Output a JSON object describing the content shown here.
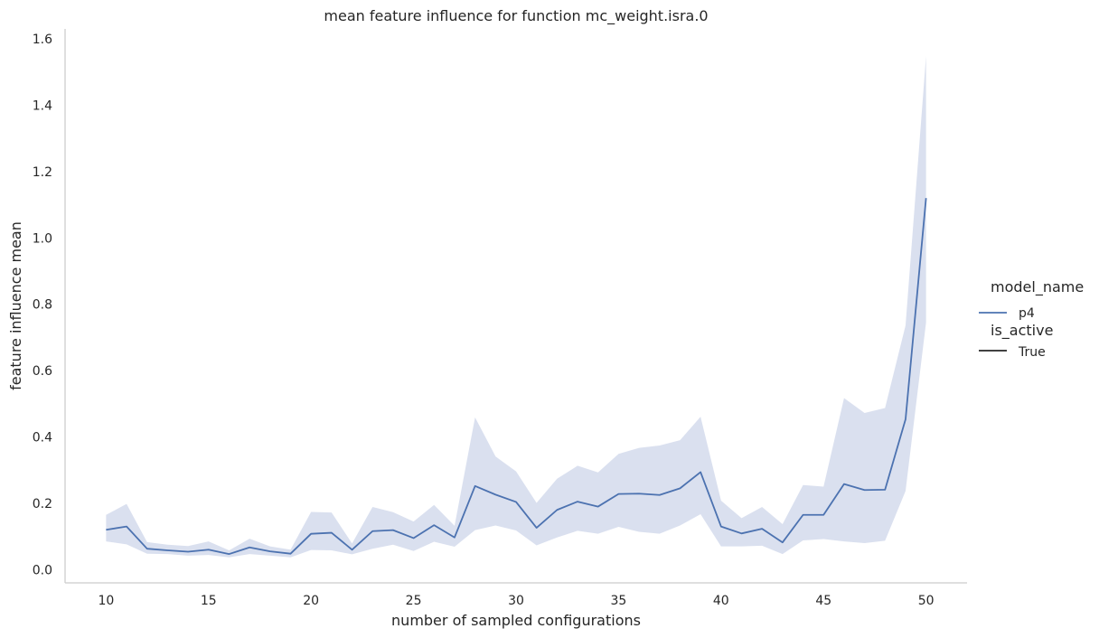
{
  "chart_data": {
    "type": "line",
    "title": "mean feature influence for function mc_weight.isra.0",
    "xlabel": "number of sampled configurations",
    "ylabel": "feature influence mean",
    "xlim": [
      8,
      52
    ],
    "ylim": [
      -0.04,
      1.63
    ],
    "xticks": [
      10,
      15,
      20,
      25,
      30,
      35,
      40,
      45,
      50
    ],
    "yticks": [
      0.0,
      0.2,
      0.4,
      0.6,
      0.8,
      1.0,
      1.2,
      1.4,
      1.6
    ],
    "ytick_labels": [
      "0.0",
      "0.2",
      "0.4",
      "0.6",
      "0.8",
      "1.0",
      "1.2",
      "1.4",
      "1.6"
    ],
    "grid": false,
    "legend_position": "right",
    "legend": {
      "title1": "model_name",
      "entry1": "p4",
      "title2": "is_active",
      "entry2": "True"
    },
    "series": [
      {
        "name": "p4",
        "color": "#4c72b0",
        "band_color": "#aebbdc",
        "x": [
          10,
          11,
          12,
          13,
          14,
          15,
          16,
          17,
          18,
          19,
          20,
          21,
          22,
          23,
          24,
          25,
          26,
          27,
          28,
          29,
          30,
          31,
          32,
          33,
          34,
          35,
          36,
          37,
          38,
          39,
          40,
          41,
          42,
          43,
          44,
          45,
          46,
          47,
          48,
          49,
          50
        ],
        "y": [
          0.12,
          0.13,
          0.063,
          0.058,
          0.054,
          0.06,
          0.047,
          0.067,
          0.055,
          0.048,
          0.108,
          0.111,
          0.06,
          0.116,
          0.119,
          0.095,
          0.134,
          0.097,
          0.252,
          0.226,
          0.204,
          0.126,
          0.18,
          0.205,
          0.19,
          0.228,
          0.229,
          0.225,
          0.245,
          0.294,
          0.13,
          0.109,
          0.123,
          0.082,
          0.165,
          0.165,
          0.258,
          0.24,
          0.241,
          0.453,
          1.12
        ],
        "lower": [
          0.085,
          0.076,
          0.048,
          0.047,
          0.042,
          0.044,
          0.037,
          0.047,
          0.042,
          0.037,
          0.059,
          0.058,
          0.046,
          0.063,
          0.075,
          0.056,
          0.084,
          0.069,
          0.119,
          0.133,
          0.118,
          0.073,
          0.097,
          0.117,
          0.108,
          0.129,
          0.114,
          0.108,
          0.133,
          0.167,
          0.07,
          0.07,
          0.072,
          0.047,
          0.088,
          0.092,
          0.085,
          0.08,
          0.087,
          0.237,
          0.745
        ],
        "upper": [
          0.165,
          0.198,
          0.083,
          0.075,
          0.071,
          0.085,
          0.058,
          0.093,
          0.07,
          0.06,
          0.174,
          0.172,
          0.079,
          0.189,
          0.173,
          0.145,
          0.195,
          0.132,
          0.459,
          0.341,
          0.296,
          0.201,
          0.274,
          0.313,
          0.293,
          0.349,
          0.367,
          0.374,
          0.39,
          0.461,
          0.208,
          0.155,
          0.189,
          0.137,
          0.255,
          0.25,
          0.517,
          0.472,
          0.487,
          0.736,
          1.548
        ]
      }
    ]
  }
}
